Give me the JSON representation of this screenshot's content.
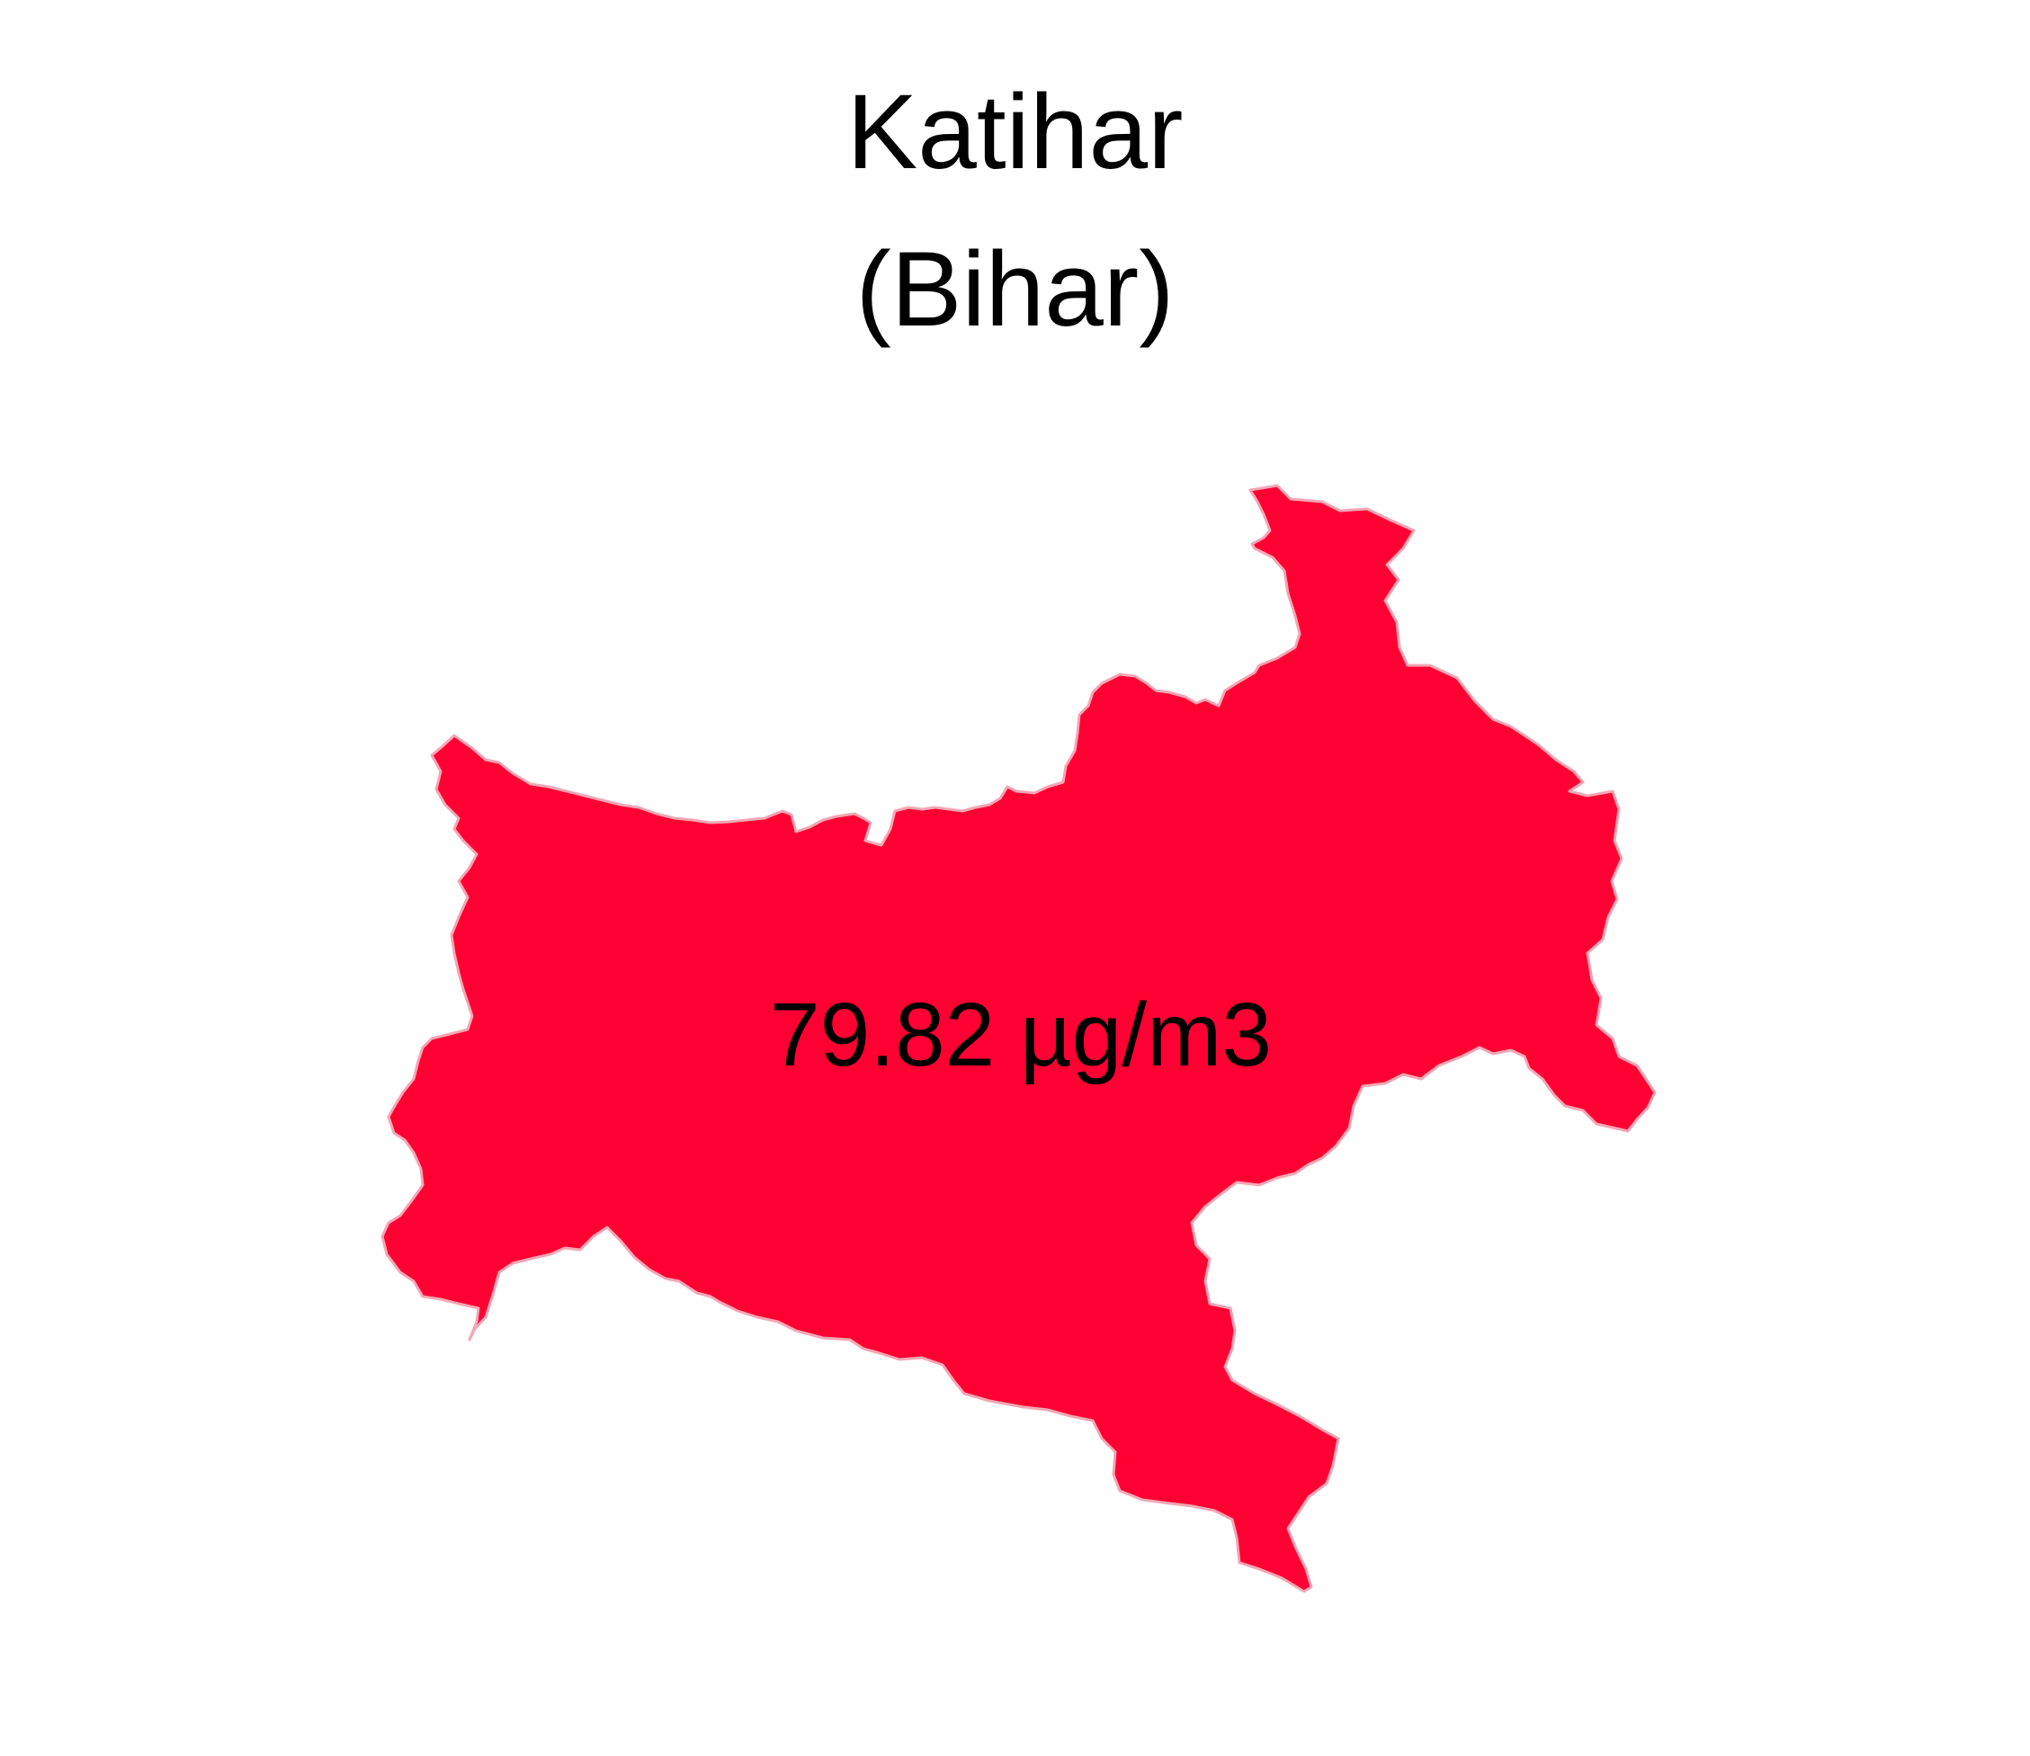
{
  "map": {
    "district": "Katihar",
    "state": "(Bihar)",
    "value_label": "79.82 µg/m3",
    "fill_color": "#ff0033",
    "border_color": "#f4a6b4",
    "background_color": "#ffffff"
  }
}
